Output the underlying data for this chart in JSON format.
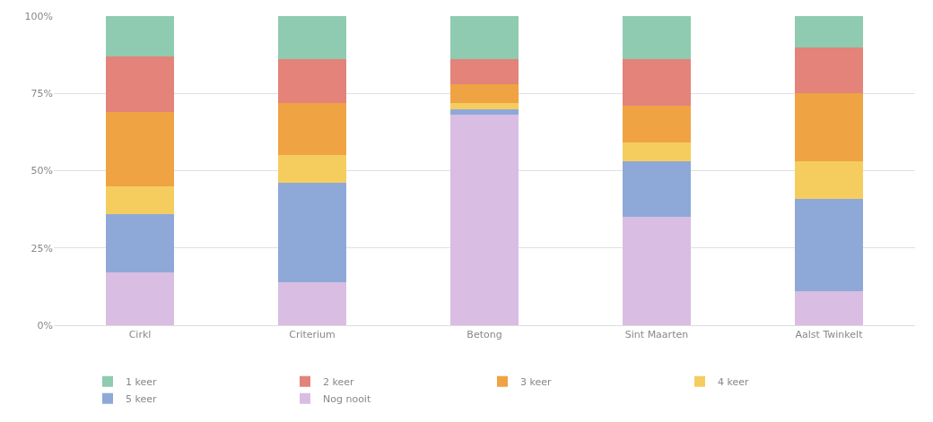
{
  "chart_data": {
    "type": "bar",
    "stacked": true,
    "categories": [
      "Cirkl",
      "Criterium",
      "Betong",
      "Sint Maarten",
      "Aalst Twinkelt"
    ],
    "series": [
      {
        "name": "Nog nooit",
        "color": "#d9bde3",
        "values": [
          17,
          14,
          68,
          35,
          11
        ]
      },
      {
        "name": "5 keer",
        "color": "#8ea9d8",
        "values": [
          19,
          32,
          2,
          18,
          30
        ]
      },
      {
        "name": "4 keer",
        "color": "#f5cd5f",
        "values": [
          9,
          9,
          2,
          6,
          12
        ]
      },
      {
        "name": "3 keer",
        "color": "#efa343",
        "values": [
          24,
          17,
          6,
          12,
          22
        ]
      },
      {
        "name": "2 keer",
        "color": "#e3837a",
        "values": [
          18,
          14,
          8,
          15,
          15
        ]
      },
      {
        "name": "1 keer",
        "color": "#8fcbb0",
        "values": [
          13,
          14,
          14,
          14,
          10
        ]
      }
    ],
    "ylim": [
      0,
      100
    ],
    "yticks": [
      {
        "value": 0,
        "label": "0%"
      },
      {
        "value": 25,
        "label": "25%"
      },
      {
        "value": 50,
        "label": "50%"
      },
      {
        "value": 75,
        "label": "75%"
      },
      {
        "value": 100,
        "label": "100%"
      }
    ],
    "grid": "y",
    "legend": "bottom"
  }
}
